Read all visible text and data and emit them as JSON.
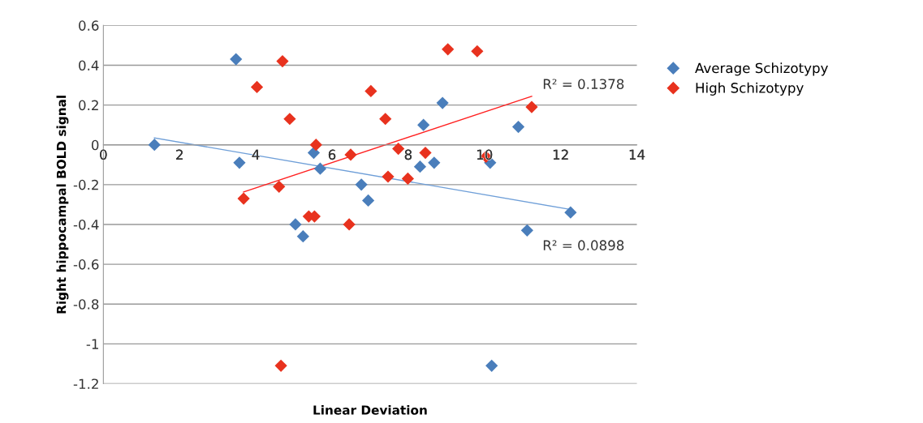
{
  "chart_data": {
    "type": "scatter",
    "xlabel": "Linear Deviation",
    "ylabel": "Right hippocampal BOLD signal",
    "series": [
      {
        "name": "Average Schizotypy",
        "color": "#4a7ebb",
        "x": [
          3.48,
          1.34,
          3.57,
          5.52,
          5.69,
          6.77,
          6.95,
          5.04,
          5.24,
          8.9,
          8.4,
          10.89,
          8.31,
          8.68,
          10.15,
          12.26,
          11.12,
          10.19
        ],
        "values": [
          0.43,
          0.0,
          -0.09,
          -0.04,
          -0.12,
          -0.2,
          -0.28,
          -0.4,
          -0.46,
          0.21,
          0.1,
          0.09,
          -0.11,
          -0.09,
          -0.09,
          -0.34,
          -0.43,
          -1.11
        ]
      },
      {
        "name": "High Schizotypy",
        "color": "#e8321e",
        "x": [
          4.7,
          4.03,
          4.89,
          5.58,
          6.49,
          7.02,
          4.61,
          3.68,
          5.39,
          5.54,
          6.45,
          9.04,
          9.81,
          7.4,
          11.24,
          7.74,
          8.45,
          7.47,
          7.99,
          10.04,
          4.66
        ],
        "values": [
          0.42,
          0.29,
          0.13,
          0.0,
          -0.05,
          0.27,
          -0.21,
          -0.27,
          -0.36,
          -0.36,
          -0.4,
          0.48,
          0.47,
          0.13,
          0.19,
          -0.02,
          -0.04,
          -0.16,
          -0.17,
          -0.06,
          -1.11
        ]
      },
      {
        "type": "line",
        "marker": "none",
        "color": "#6f9fd8",
        "x": [
          1.34,
          12.26
        ],
        "values": [
          0.035,
          -0.325
        ]
      },
      {
        "type": "line",
        "marker": "none",
        "color": "#ff2020",
        "x": [
          3.68,
          11.24
        ],
        "values": [
          -0.237,
          0.244
        ]
      }
    ],
    "annotations": [
      "R² = 0.1378",
      "R² = 0.0898"
    ],
    "xlim": [
      0,
      14
    ],
    "xticks": [
      0,
      2,
      4,
      6,
      8,
      10,
      12,
      14
    ],
    "ylim": [
      -1.2,
      0.6
    ],
    "yticks": [
      -1.2,
      -1,
      -0.8,
      -0.6,
      -0.4,
      -0.2,
      0,
      0.2,
      0.4,
      0.6
    ],
    "grid": "y",
    "legend": "right",
    "marker": "diamond",
    "line_style": "solid"
  }
}
